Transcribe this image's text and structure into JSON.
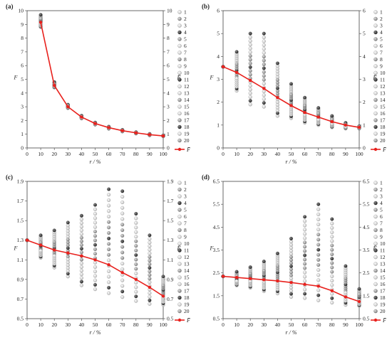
{
  "chart_data": [
    {
      "panel": "(a)",
      "type": "scatter",
      "ylabel": "F",
      "right_ylabel": "F̄",
      "xlabel": "r / %",
      "xlim": [
        0,
        100
      ],
      "ylim": [
        0,
        10
      ],
      "xticks": [
        "0",
        "10",
        "20",
        "30",
        "40",
        "50",
        "60",
        "70",
        "80",
        "90",
        "100"
      ],
      "yticks": [
        "0",
        "1",
        "2",
        "3",
        "4",
        "5",
        "6",
        "7",
        "8",
        "9",
        "10"
      ],
      "x": [
        10,
        20,
        30,
        40,
        50,
        60,
        70,
        80,
        90,
        100
      ],
      "ranges": [
        [
          8.8,
          9.7
        ],
        [
          4.4,
          4.8
        ],
        [
          2.9,
          3.15
        ],
        [
          2.15,
          2.35
        ],
        [
          1.7,
          1.85
        ],
        [
          1.4,
          1.55
        ],
        [
          1.2,
          1.32
        ],
        [
          1.05,
          1.15
        ],
        [
          0.92,
          1.02
        ],
        [
          0.85,
          0.92
        ]
      ],
      "mean": [
        9.15,
        4.55,
        3.0,
        2.25,
        1.78,
        1.48,
        1.26,
        1.1,
        0.97,
        0.88
      ],
      "legend_labels": [
        "1",
        "2",
        "3",
        "4",
        "5",
        "6",
        "7",
        "8",
        "9",
        "10",
        "11",
        "12",
        "13",
        "14",
        "15",
        "16",
        "17",
        "18",
        "19",
        "20"
      ],
      "mean_label": "F̄",
      "mean_color": "#e8211d"
    },
    {
      "panel": "(b)",
      "type": "scatter",
      "ylabel": "F",
      "right_ylabel": "F̄",
      "xlabel": "r / %",
      "xlim": [
        0,
        100
      ],
      "ylim": [
        0,
        6
      ],
      "xticks": [
        "0",
        "10",
        "20",
        "30",
        "40",
        "50",
        "60",
        "70",
        "80",
        "90",
        "100"
      ],
      "yticks": [
        "0",
        "1",
        "2",
        "3",
        "4",
        "5",
        "6"
      ],
      "x": [
        0,
        10,
        20,
        30,
        40,
        50,
        60,
        70,
        80,
        90,
        100
      ],
      "ranges": [
        [
          3.55,
          3.55
        ],
        [
          2.5,
          4.2
        ],
        [
          1.9,
          5.0
        ],
        [
          1.8,
          5.0
        ],
        [
          1.4,
          3.7
        ],
        [
          1.3,
          2.8
        ],
        [
          1.1,
          2.2
        ],
        [
          1.0,
          1.75
        ],
        [
          0.9,
          1.4
        ],
        [
          0.85,
          1.1
        ],
        [
          0.85,
          0.95
        ]
      ],
      "mean": [
        3.55,
        3.3,
        2.95,
        2.6,
        2.2,
        1.85,
        1.55,
        1.35,
        1.15,
        1.0,
        0.9
      ],
      "legend_labels": [
        "1",
        "2",
        "3",
        "4",
        "5",
        "6",
        "7",
        "8",
        "9",
        "10",
        "11",
        "12",
        "13",
        "14",
        "15",
        "16",
        "17",
        "18",
        "19",
        "20"
      ],
      "mean_label": "F̄",
      "mean_color": "#e8211d"
    },
    {
      "panel": "(c)",
      "type": "scatter",
      "ylabel": "F",
      "right_ylabel": "F̄",
      "xlabel": "r / %",
      "xlim": [
        0,
        100
      ],
      "ylim": [
        0.5,
        1.9
      ],
      "xticks": [
        "0",
        "10",
        "20",
        "30",
        "40",
        "50",
        "60",
        "70",
        "80",
        "90",
        "100"
      ],
      "yticks": [
        "0.5",
        "0.7",
        "0.9",
        "1.1",
        "1.3",
        "1.5",
        "1.7",
        "1.9"
      ],
      "x": [
        0,
        10,
        20,
        30,
        40,
        50,
        60,
        70,
        80,
        90,
        100
      ],
      "ranges": [
        [
          1.3,
          1.3
        ],
        [
          1.12,
          1.35
        ],
        [
          1.02,
          1.4
        ],
        [
          0.93,
          1.48
        ],
        [
          0.84,
          1.55
        ],
        [
          0.8,
          1.66
        ],
        [
          0.76,
          1.82
        ],
        [
          0.72,
          1.8
        ],
        [
          0.68,
          1.57
        ],
        [
          0.65,
          1.35
        ],
        [
          0.64,
          0.93
        ]
      ],
      "mean": [
        1.3,
        1.25,
        1.2,
        1.17,
        1.14,
        1.1,
        1.05,
        0.97,
        0.9,
        0.82,
        0.73
      ],
      "legend_labels": [
        "1",
        "2",
        "3",
        "4",
        "5",
        "6",
        "7",
        "8",
        "9",
        "10",
        "11",
        "12",
        "13",
        "14",
        "15",
        "16",
        "17",
        "18",
        "19",
        "20"
      ],
      "mean_label": "F̄",
      "mean_color": "#e8211d"
    },
    {
      "panel": "(d)",
      "type": "scatter",
      "ylabel": "F",
      "right_ylabel": "F̄",
      "xlabel": "r / %",
      "xlim": [
        0,
        100
      ],
      "ylim": [
        0.5,
        6.5
      ],
      "xticks": [
        "0",
        "10",
        "20",
        "30",
        "40",
        "50",
        "60",
        "70",
        "80",
        "90",
        "100"
      ],
      "yticks": [
        "0.5",
        "1.5",
        "2.5",
        "3.5",
        "4.5",
        "5.5",
        "6.5"
      ],
      "x": [
        0,
        10,
        20,
        30,
        40,
        50,
        60,
        70,
        80,
        90,
        100
      ],
      "ranges": [
        [
          2.35,
          2.35
        ],
        [
          1.95,
          2.55
        ],
        [
          1.85,
          2.75
        ],
        [
          1.7,
          3.0
        ],
        [
          1.6,
          3.35
        ],
        [
          1.45,
          4.0
        ],
        [
          1.4,
          4.95
        ],
        [
          1.3,
          5.5
        ],
        [
          1.2,
          4.85
        ],
        [
          1.1,
          2.8
        ],
        [
          1.05,
          1.8
        ]
      ],
      "mean": [
        2.35,
        2.3,
        2.25,
        2.2,
        2.15,
        2.08,
        2.0,
        1.92,
        1.72,
        1.45,
        1.25
      ],
      "legend_labels": [
        "1",
        "2",
        "3",
        "4",
        "5",
        "6",
        "7",
        "8",
        "9",
        "10",
        "11",
        "12",
        "13",
        "14",
        "15",
        "16",
        "17",
        "18",
        "19",
        "20"
      ],
      "mean_label": "F̄",
      "mean_color": "#e8211d"
    }
  ]
}
